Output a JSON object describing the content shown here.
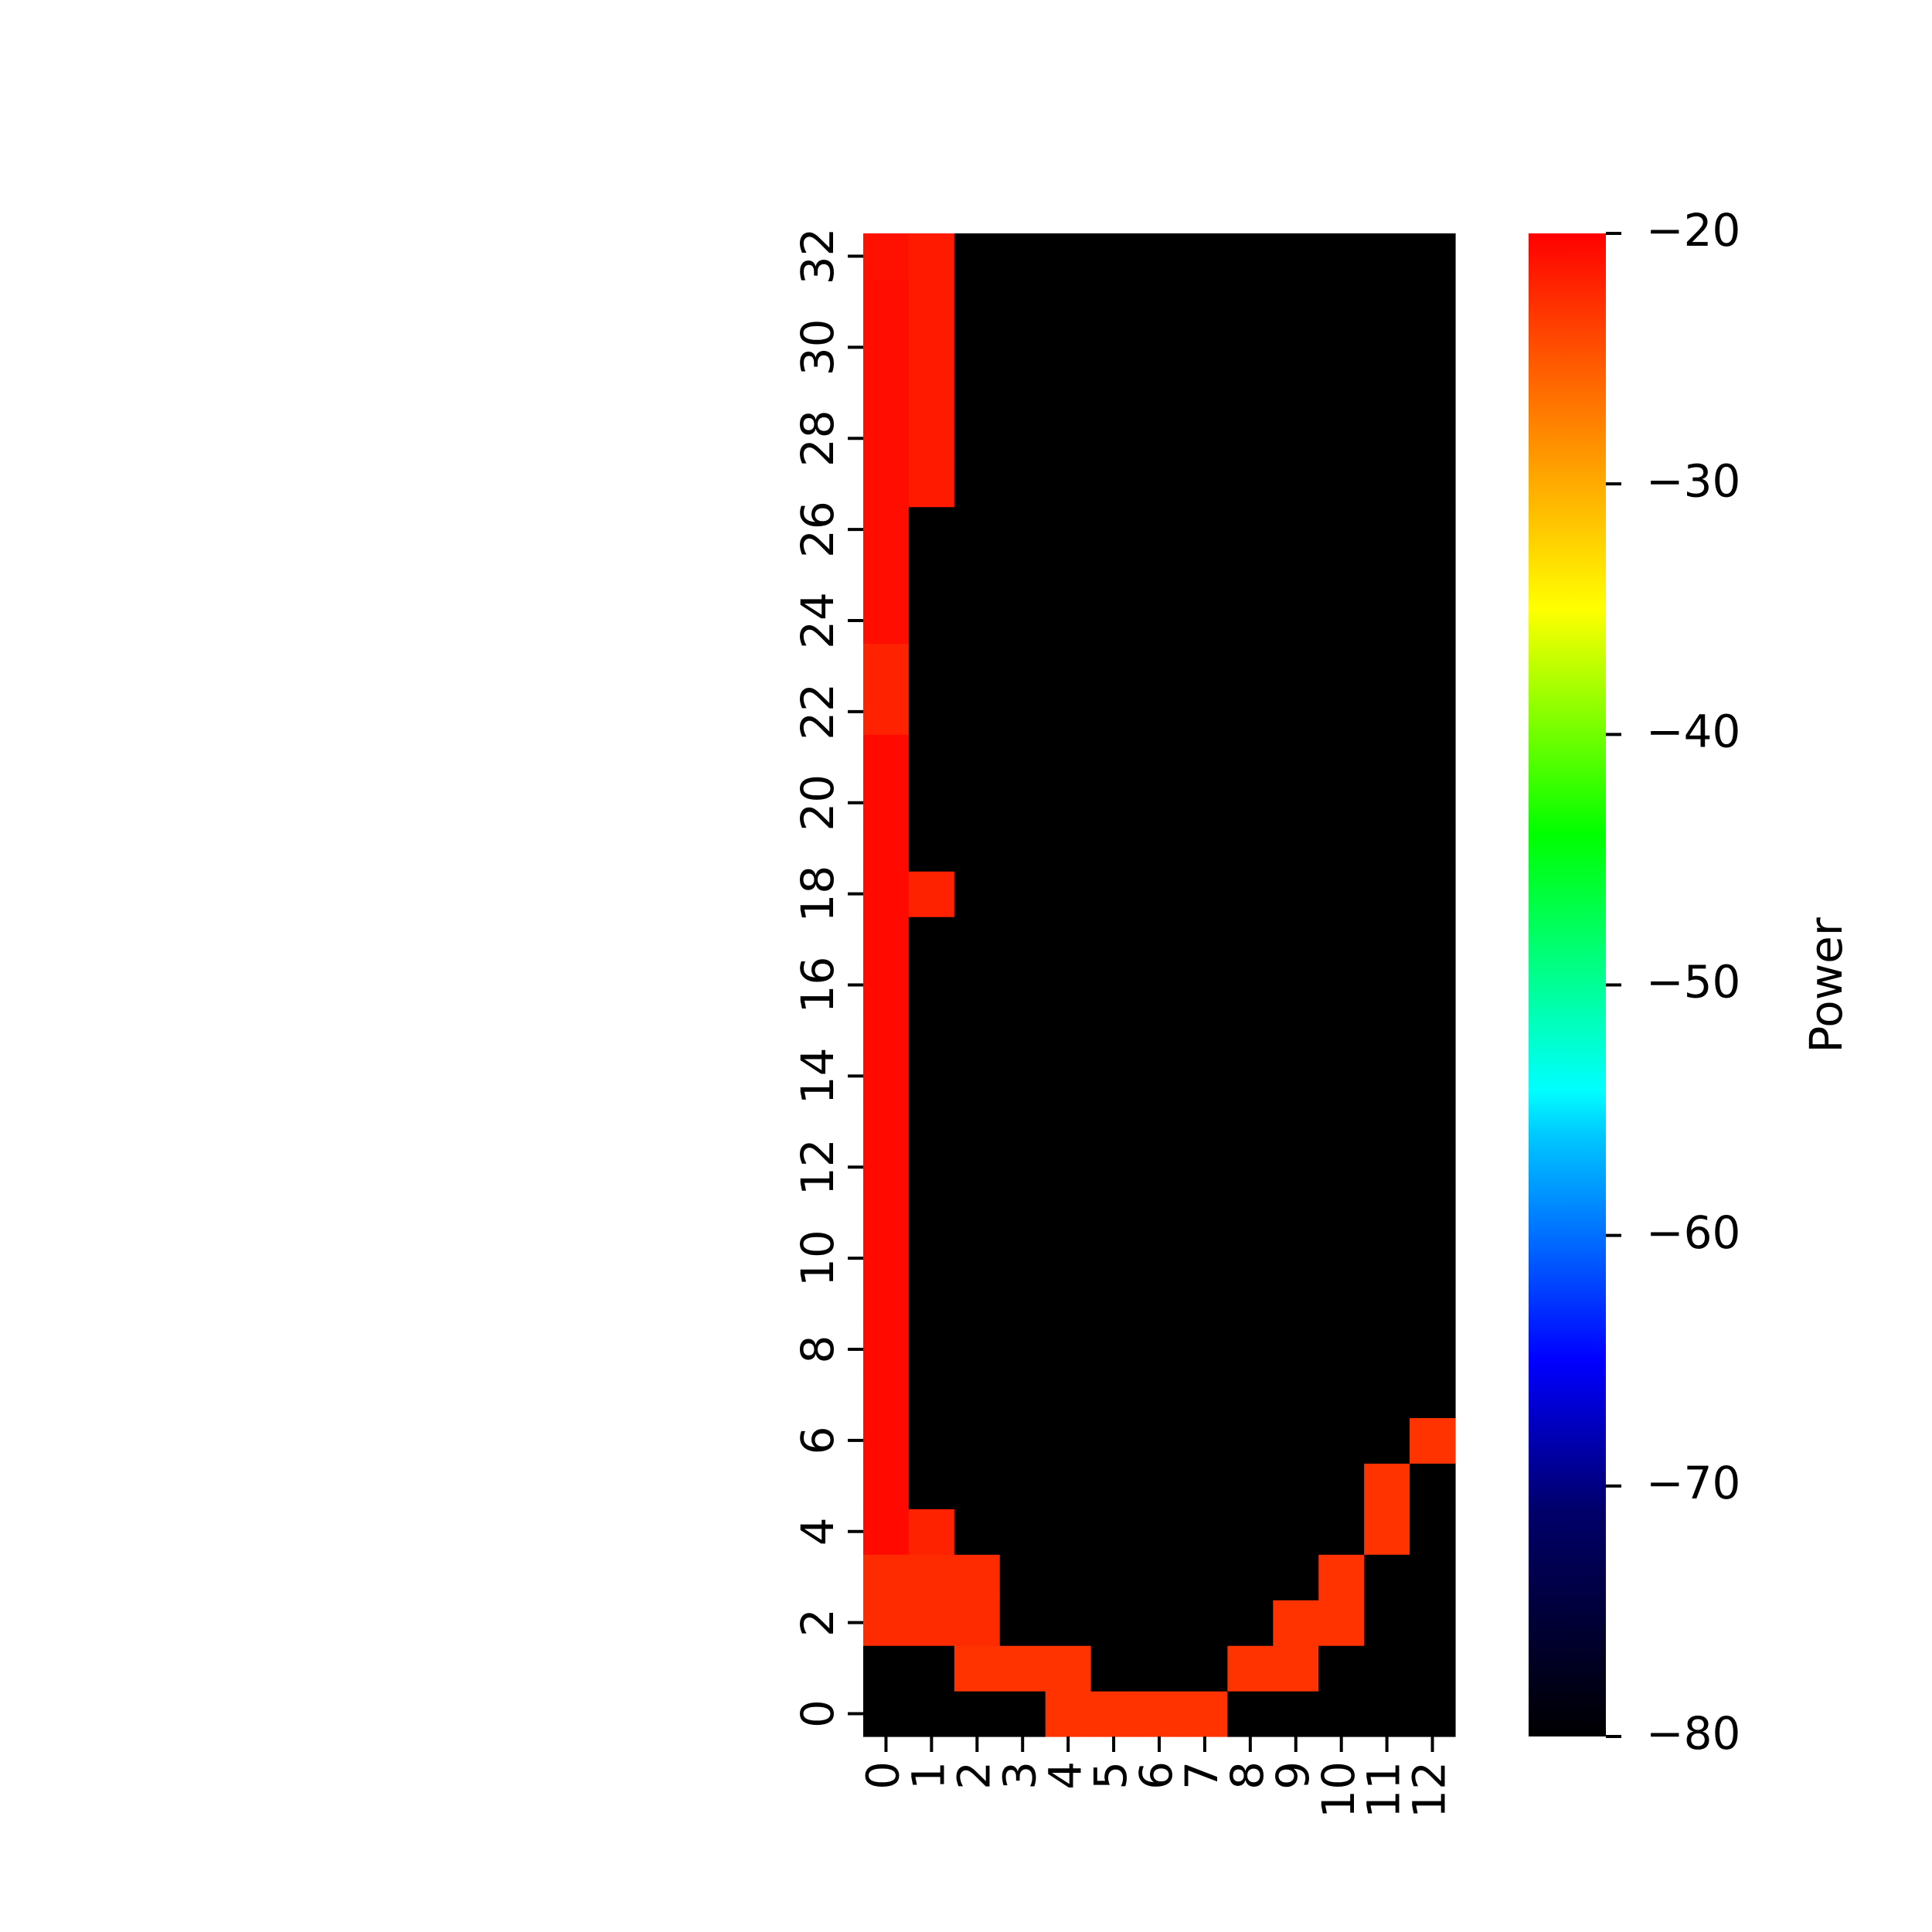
{
  "chart_data": {
    "type": "heatmap",
    "title": "",
    "xlabel": "",
    "ylabel": "",
    "x_ticks": [
      "0",
      "1",
      "2",
      "3",
      "4",
      "5",
      "6",
      "7",
      "8",
      "9",
      "10",
      "11",
      "12"
    ],
    "y_ticks": [
      "0",
      "2",
      "4",
      "6",
      "8",
      "10",
      "12",
      "14",
      "16",
      "18",
      "20",
      "22",
      "24",
      "26",
      "28",
      "30",
      "32"
    ],
    "n_cols": 13,
    "n_rows": 33,
    "colormap": "jet-like (black → blue → cyan → green → yellow → orange → red)",
    "colorbar": {
      "label": "Power",
      "min": -80,
      "max": -20,
      "ticks": [
        "−20",
        "−30",
        "−40",
        "−50",
        "−60",
        "−70",
        "−80"
      ],
      "tick_values": [
        -20,
        -30,
        -40,
        -50,
        -60,
        -70,
        -80
      ]
    },
    "default_value": -80,
    "cells": [
      {
        "x": 4,
        "y": 0,
        "v": -23
      },
      {
        "x": 5,
        "y": 0,
        "v": -23
      },
      {
        "x": 6,
        "y": 0,
        "v": -23
      },
      {
        "x": 7,
        "y": 0,
        "v": -23
      },
      {
        "x": 2,
        "y": 1,
        "v": -23
      },
      {
        "x": 3,
        "y": 1,
        "v": -23
      },
      {
        "x": 4,
        "y": 1,
        "v": -23
      },
      {
        "x": 8,
        "y": 1,
        "v": -23
      },
      {
        "x": 9,
        "y": 1,
        "v": -23
      },
      {
        "x": 0,
        "y": 2,
        "v": -22.5
      },
      {
        "x": 1,
        "y": 2,
        "v": -22.5
      },
      {
        "x": 2,
        "y": 2,
        "v": -22.5
      },
      {
        "x": 9,
        "y": 2,
        "v": -23
      },
      {
        "x": 10,
        "y": 2,
        "v": -23
      },
      {
        "x": 0,
        "y": 3,
        "v": -22.5
      },
      {
        "x": 1,
        "y": 3,
        "v": -22.5
      },
      {
        "x": 2,
        "y": 3,
        "v": -22.5
      },
      {
        "x": 10,
        "y": 3,
        "v": -23
      },
      {
        "x": 0,
        "y": 4,
        "v": -20.5
      },
      {
        "x": 1,
        "y": 4,
        "v": -22
      },
      {
        "x": 11,
        "y": 4,
        "v": -23
      },
      {
        "x": 0,
        "y": 5,
        "v": -20.5
      },
      {
        "x": 11,
        "y": 5,
        "v": -23
      },
      {
        "x": 0,
        "y": 6,
        "v": -20.5
      },
      {
        "x": 12,
        "y": 6,
        "v": -23
      },
      {
        "x": 0,
        "y": 7,
        "v": -20.5
      },
      {
        "x": 0,
        "y": 8,
        "v": -20.5
      },
      {
        "x": 0,
        "y": 9,
        "v": -20.5
      },
      {
        "x": 0,
        "y": 10,
        "v": -20.5
      },
      {
        "x": 0,
        "y": 11,
        "v": -20.5
      },
      {
        "x": 0,
        "y": 12,
        "v": -20.5
      },
      {
        "x": 0,
        "y": 13,
        "v": -20.5
      },
      {
        "x": 0,
        "y": 14,
        "v": -20.5
      },
      {
        "x": 0,
        "y": 15,
        "v": -20.5
      },
      {
        "x": 0,
        "y": 16,
        "v": -20.5
      },
      {
        "x": 0,
        "y": 17,
        "v": -20.5
      },
      {
        "x": 0,
        "y": 18,
        "v": -20.5
      },
      {
        "x": 1,
        "y": 18,
        "v": -22
      },
      {
        "x": 0,
        "y": 19,
        "v": -20.5
      },
      {
        "x": 0,
        "y": 20,
        "v": -20.5
      },
      {
        "x": 0,
        "y": 21,
        "v": -20.5
      },
      {
        "x": 0,
        "y": 22,
        "v": -22
      },
      {
        "x": 0,
        "y": 23,
        "v": -22
      },
      {
        "x": 0,
        "y": 24,
        "v": -20.8
      },
      {
        "x": 0,
        "y": 25,
        "v": -20.8
      },
      {
        "x": 0,
        "y": 26,
        "v": -20.8
      },
      {
        "x": 0,
        "y": 27,
        "v": -20.8
      },
      {
        "x": 1,
        "y": 27,
        "v": -21.5
      },
      {
        "x": 0,
        "y": 28,
        "v": -20.8
      },
      {
        "x": 1,
        "y": 28,
        "v": -21.5
      },
      {
        "x": 0,
        "y": 29,
        "v": -20.8
      },
      {
        "x": 1,
        "y": 29,
        "v": -21.5
      },
      {
        "x": 0,
        "y": 30,
        "v": -20.8
      },
      {
        "x": 1,
        "y": 30,
        "v": -21.5
      },
      {
        "x": 0,
        "y": 31,
        "v": -20.8
      },
      {
        "x": 1,
        "y": 31,
        "v": -21.5
      },
      {
        "x": 0,
        "y": 32,
        "v": -21
      },
      {
        "x": 1,
        "y": 32,
        "v": -21.5
      }
    ]
  }
}
